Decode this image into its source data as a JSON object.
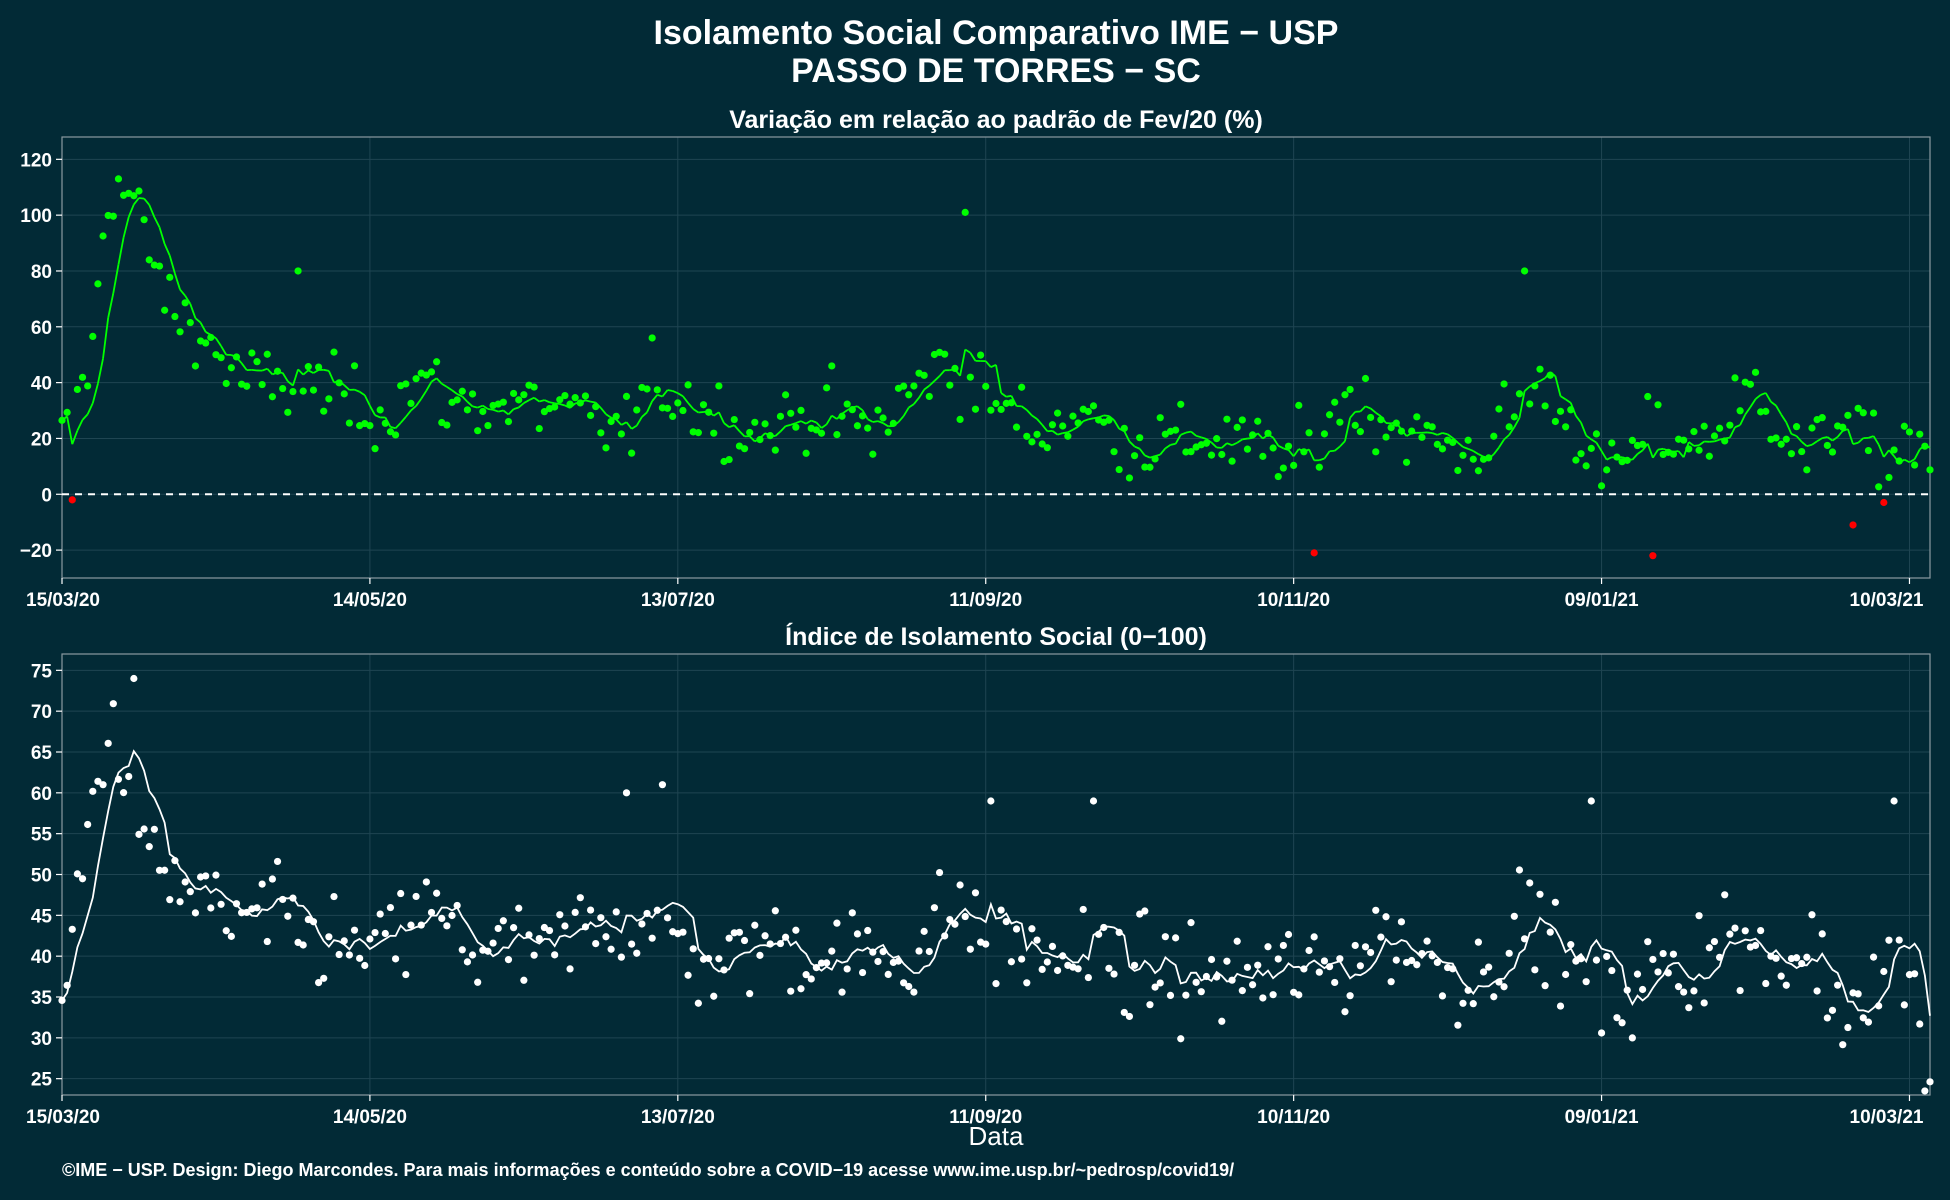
{
  "title_line1": "Isolamento Social Comparativo IME − USP",
  "title_line2": "PASSO DE TORRES − SC",
  "xlabel": "Data",
  "credit": "©IME − USP. Design: Diego Marcondes. Para mais informações e conteúdo sobre a COVID−19 acesse www.ime.usp.br/~pedrosp/covid19/",
  "colors": {
    "background": "#022a36",
    "panel_border": "#8a9aa0",
    "grid": "#1f4552",
    "positive": "#00ff00",
    "negative": "#ff0000",
    "index": "#ffffff",
    "zero_line": "#ffffff"
  },
  "chart_data": [
    {
      "type": "scatter",
      "title": "Variação em relação ao padrão de Fev/20 (%)",
      "x_ticks": [
        "15/03/20",
        "14/05/20",
        "13/07/20",
        "11/09/20",
        "10/11/20",
        "09/01/21",
        "10/03/21"
      ],
      "x_tick_days": [
        0,
        60,
        120,
        180,
        240,
        300,
        360
      ],
      "x_range_days": [
        0,
        364
      ],
      "ylim": [
        -30,
        128
      ],
      "y_ticks": [
        -20,
        0,
        20,
        40,
        60,
        80,
        100,
        120
      ],
      "reference_line": 0,
      "grid": true,
      "series": [
        {
          "style": "points",
          "color_rule": "green if >= 0, red if < 0",
          "anchors_day": [
            0,
            6,
            8,
            10,
            14,
            20,
            28,
            35,
            50,
            62,
            70,
            75,
            92,
            110,
            115,
            125,
            135,
            148,
            158,
            166,
            172,
            180,
            190,
            198,
            208,
            225,
            240,
            250,
            262,
            275,
            288,
            296,
            300,
            310,
            320,
            330,
            340,
            348,
            355,
            359,
            364
          ],
          "anchors_value": [
            18,
            50,
            95,
            112,
            105,
            70,
            55,
            40,
            38,
            28,
            42,
            32,
            32,
            22,
            40,
            30,
            22,
            30,
            22,
            38,
            48,
            35,
            22,
            30,
            18,
            20,
            12,
            35,
            22,
            14,
            40,
            22,
            5,
            22,
            18,
            38,
            12,
            32,
            5,
            22,
            10
          ]
        },
        {
          "style": "line",
          "label": "média móvel",
          "color_rule": "green if >= 0, red if < 0"
        }
      ],
      "annotations_outliers": [
        {
          "date_day": 2,
          "value": -2
        },
        {
          "date_day": 46,
          "value": 80
        },
        {
          "date_day": 176,
          "value": 101
        },
        {
          "date_day": 244,
          "value": -21
        },
        {
          "date_day": 285,
          "value": 80
        },
        {
          "date_day": 310,
          "value": -22
        },
        {
          "date_day": 349,
          "value": -11
        }
      ]
    },
    {
      "type": "scatter",
      "title": "Índice de Isolamento Social (0−100)",
      "x_ticks": [
        "15/03/20",
        "14/05/20",
        "13/07/20",
        "11/09/20",
        "10/11/20",
        "09/01/21",
        "10/03/21"
      ],
      "x_tick_days": [
        0,
        60,
        120,
        180,
        240,
        300,
        360
      ],
      "x_range_days": [
        0,
        364
      ],
      "ylim": [
        23,
        77
      ],
      "y_ticks": [
        25,
        30,
        35,
        40,
        45,
        50,
        55,
        60,
        65,
        70,
        75
      ],
      "grid": true,
      "series": [
        {
          "style": "points",
          "color": "#ffffff",
          "anchors_day": [
            0,
            2,
            5,
            8,
            10,
            13,
            18,
            25,
            33,
            40,
            50,
            58,
            66,
            70,
            80,
            95,
            105,
            115,
            128,
            136,
            150,
            165,
            174,
            180,
            190,
            200,
            210,
            225,
            240,
            250,
            255,
            262,
            275,
            285,
            292,
            300,
            310,
            318,
            322,
            335,
            340,
            347,
            355,
            360,
            364
          ],
          "anchors_value": [
            32,
            42,
            55,
            66,
            67,
            62,
            50,
            48,
            44,
            45,
            42,
            40,
            42,
            46,
            41,
            40,
            45,
            44,
            38,
            42,
            40,
            40,
            46,
            42,
            40,
            40,
            38,
            37,
            38,
            38,
            43,
            41,
            37,
            45,
            40,
            34,
            38,
            38,
            44,
            37,
            42,
            33,
            40,
            38,
            24
          ]
        },
        {
          "style": "line",
          "label": "média móvel",
          "color": "#ffffff"
        }
      ],
      "annotations_outliers": [
        {
          "date_day": 14,
          "value": 74
        },
        {
          "date_day": 110,
          "value": 60
        },
        {
          "date_day": 117,
          "value": 61
        },
        {
          "date_day": 181,
          "value": 59
        },
        {
          "date_day": 201,
          "value": 59
        },
        {
          "date_day": 298,
          "value": 59
        },
        {
          "date_day": 357,
          "value": 59
        }
      ]
    }
  ]
}
